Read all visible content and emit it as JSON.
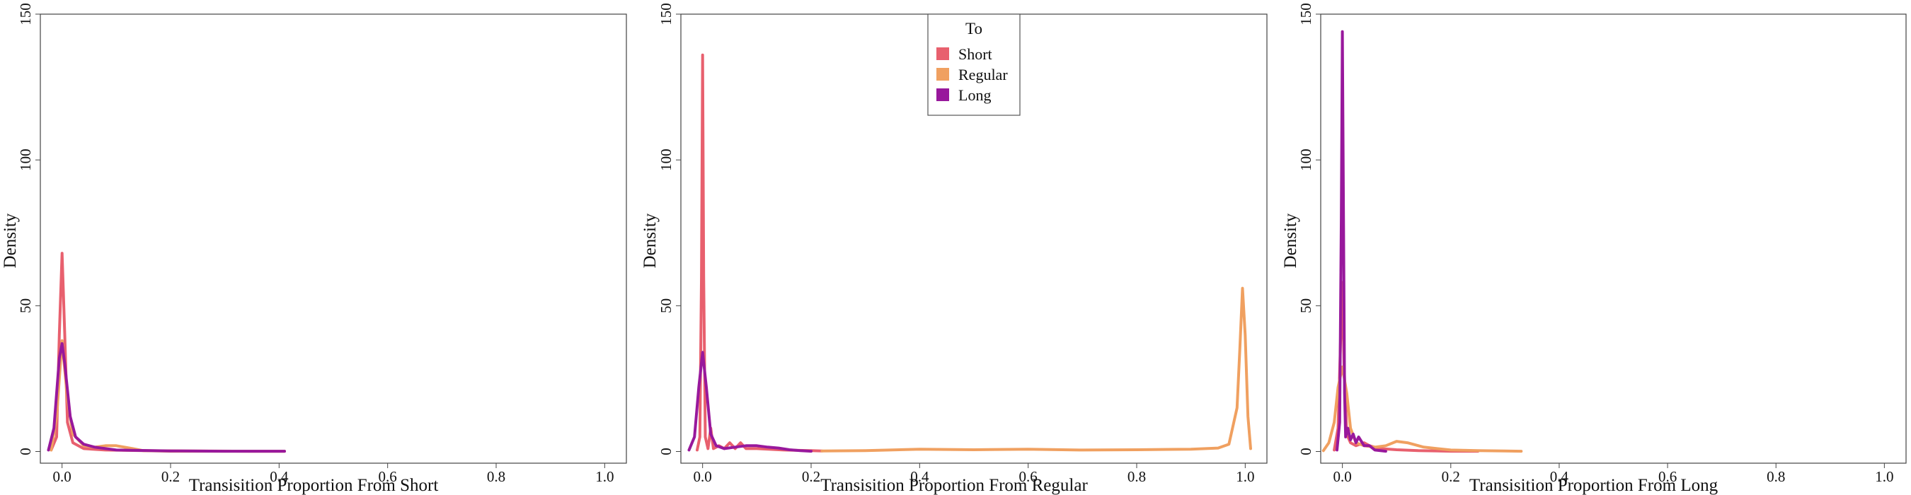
{
  "colors": {
    "Short": "#e8606e",
    "Regular": "#f0a060",
    "Long": "#98189c"
  },
  "legend": {
    "title": "To",
    "entries": [
      "Short",
      "Regular",
      "Long"
    ],
    "placement": "top-center of middle panel"
  },
  "chart_data": [
    {
      "type": "line",
      "subtype": "density",
      "xlabel": "Transisition Proportion From Short",
      "ylabel": "Density",
      "xlim": [
        -0.04,
        1.04
      ],
      "ylim": [
        -4,
        150
      ],
      "xticks": [
        "0.0",
        "0.2",
        "0.4",
        "0.6",
        "0.8",
        "1.0"
      ],
      "yticks": [
        "0",
        "50",
        "100",
        "150"
      ],
      "grid": false,
      "series": [
        {
          "name": "Short",
          "x": [
            -0.02,
            -0.01,
            -0.005,
            0.0,
            0.005,
            0.01,
            0.02,
            0.04,
            0.08,
            0.15,
            0.25,
            0.35,
            0.41
          ],
          "y": [
            0.5,
            5,
            40,
            68,
            40,
            10,
            3,
            1,
            0.5,
            0.3,
            0.2,
            0.1,
            0.1
          ]
        },
        {
          "name": "Regular",
          "x": [
            -0.02,
            -0.01,
            0.0,
            0.01,
            0.02,
            0.04,
            0.06,
            0.08,
            0.1,
            0.13,
            0.15,
            0.2,
            0.3,
            0.41
          ],
          "y": [
            0.5,
            12,
            38,
            18,
            6,
            2,
            1.5,
            2,
            2,
            1,
            0.3,
            0.1,
            0.1,
            0.1
          ]
        },
        {
          "name": "Long",
          "x": [
            -0.025,
            -0.015,
            -0.005,
            0.0,
            0.005,
            0.015,
            0.025,
            0.04,
            0.06,
            0.1,
            0.2,
            0.3,
            0.41
          ],
          "y": [
            0.5,
            8,
            32,
            37,
            30,
            12,
            5,
            2.5,
            1.5,
            0.5,
            0.2,
            0.1,
            0.1
          ]
        }
      ]
    },
    {
      "type": "line",
      "subtype": "density",
      "xlabel": "Transisition Proportion From Regular",
      "ylabel": "Density",
      "xlim": [
        -0.04,
        1.04
      ],
      "ylim": [
        -4,
        150
      ],
      "xticks": [
        "0.0",
        "0.2",
        "0.4",
        "0.6",
        "0.8",
        "1.0"
      ],
      "yticks": [
        "0",
        "50",
        "100",
        "150"
      ],
      "grid": false,
      "series": [
        {
          "name": "Short",
          "x": [
            -0.01,
            -0.005,
            -0.002,
            0.0,
            0.002,
            0.005,
            0.01,
            0.015,
            0.02,
            0.03,
            0.04,
            0.05,
            0.06,
            0.07,
            0.08,
            0.1,
            0.15,
            0.2,
            0.22
          ],
          "y": [
            0.5,
            5,
            60,
            136,
            60,
            5,
            1,
            8,
            1,
            2,
            1,
            3,
            1,
            3,
            1,
            1,
            0.5,
            0.3,
            0.2
          ]
        },
        {
          "name": "Regular",
          "x": [
            0.22,
            0.3,
            0.4,
            0.5,
            0.6,
            0.7,
            0.8,
            0.9,
            0.95,
            0.97,
            0.985,
            0.99,
            0.995,
            1.0,
            1.005,
            1.01
          ],
          "y": [
            0.2,
            0.3,
            0.8,
            0.6,
            0.8,
            0.5,
            0.6,
            0.8,
            1.2,
            2.5,
            15,
            35,
            56,
            40,
            12,
            1
          ]
        },
        {
          "name": "Long",
          "x": [
            -0.025,
            -0.015,
            -0.007,
            0.0,
            0.007,
            0.015,
            0.025,
            0.04,
            0.06,
            0.08,
            0.1,
            0.12,
            0.14,
            0.16,
            0.18,
            0.2
          ],
          "y": [
            0.5,
            5,
            22,
            34,
            22,
            6,
            2,
            1,
            1.5,
            2,
            2,
            1.5,
            1.2,
            0.6,
            0.3,
            0.1
          ]
        }
      ]
    },
    {
      "type": "line",
      "subtype": "density",
      "xlabel": "Transisition Proportion From Long",
      "ylabel": "Density",
      "xlim": [
        -0.04,
        1.04
      ],
      "ylim": [
        -4,
        150
      ],
      "xticks": [
        "0.0",
        "0.2",
        "0.4",
        "0.6",
        "0.8",
        "1.0"
      ],
      "yticks": [
        "0",
        "50",
        "100",
        "150"
      ],
      "grid": false,
      "series": [
        {
          "name": "Short",
          "x": [
            -0.015,
            -0.008,
            -0.003,
            0.0,
            0.003,
            0.008,
            0.015,
            0.025,
            0.04,
            0.05,
            0.07,
            0.1,
            0.14,
            0.2,
            0.25
          ],
          "y": [
            0.5,
            8,
            40,
            58,
            30,
            6,
            3,
            2,
            3,
            2,
            1,
            0.6,
            0.3,
            0.1,
            0.1
          ]
        },
        {
          "name": "Regular",
          "x": [
            -0.035,
            -0.025,
            -0.015,
            -0.008,
            0.0,
            0.008,
            0.015,
            0.025,
            0.04,
            0.06,
            0.08,
            0.1,
            0.12,
            0.15,
            0.2,
            0.25,
            0.3,
            0.33
          ],
          "y": [
            0.3,
            3,
            10,
            22,
            29,
            20,
            8,
            3,
            2,
            1.5,
            2,
            3.5,
            3,
            1.5,
            0.5,
            0.3,
            0.2,
            0.1
          ]
        },
        {
          "name": "Long",
          "x": [
            -0.01,
            -0.005,
            -0.002,
            0.0,
            0.002,
            0.004,
            0.006,
            0.01,
            0.015,
            0.02,
            0.025,
            0.03,
            0.04,
            0.05,
            0.06,
            0.08
          ],
          "y": [
            0.5,
            10,
            80,
            144,
            80,
            20,
            5,
            8,
            4,
            6,
            3,
            5,
            2,
            2,
            0.5,
            0.1
          ]
        }
      ]
    }
  ]
}
